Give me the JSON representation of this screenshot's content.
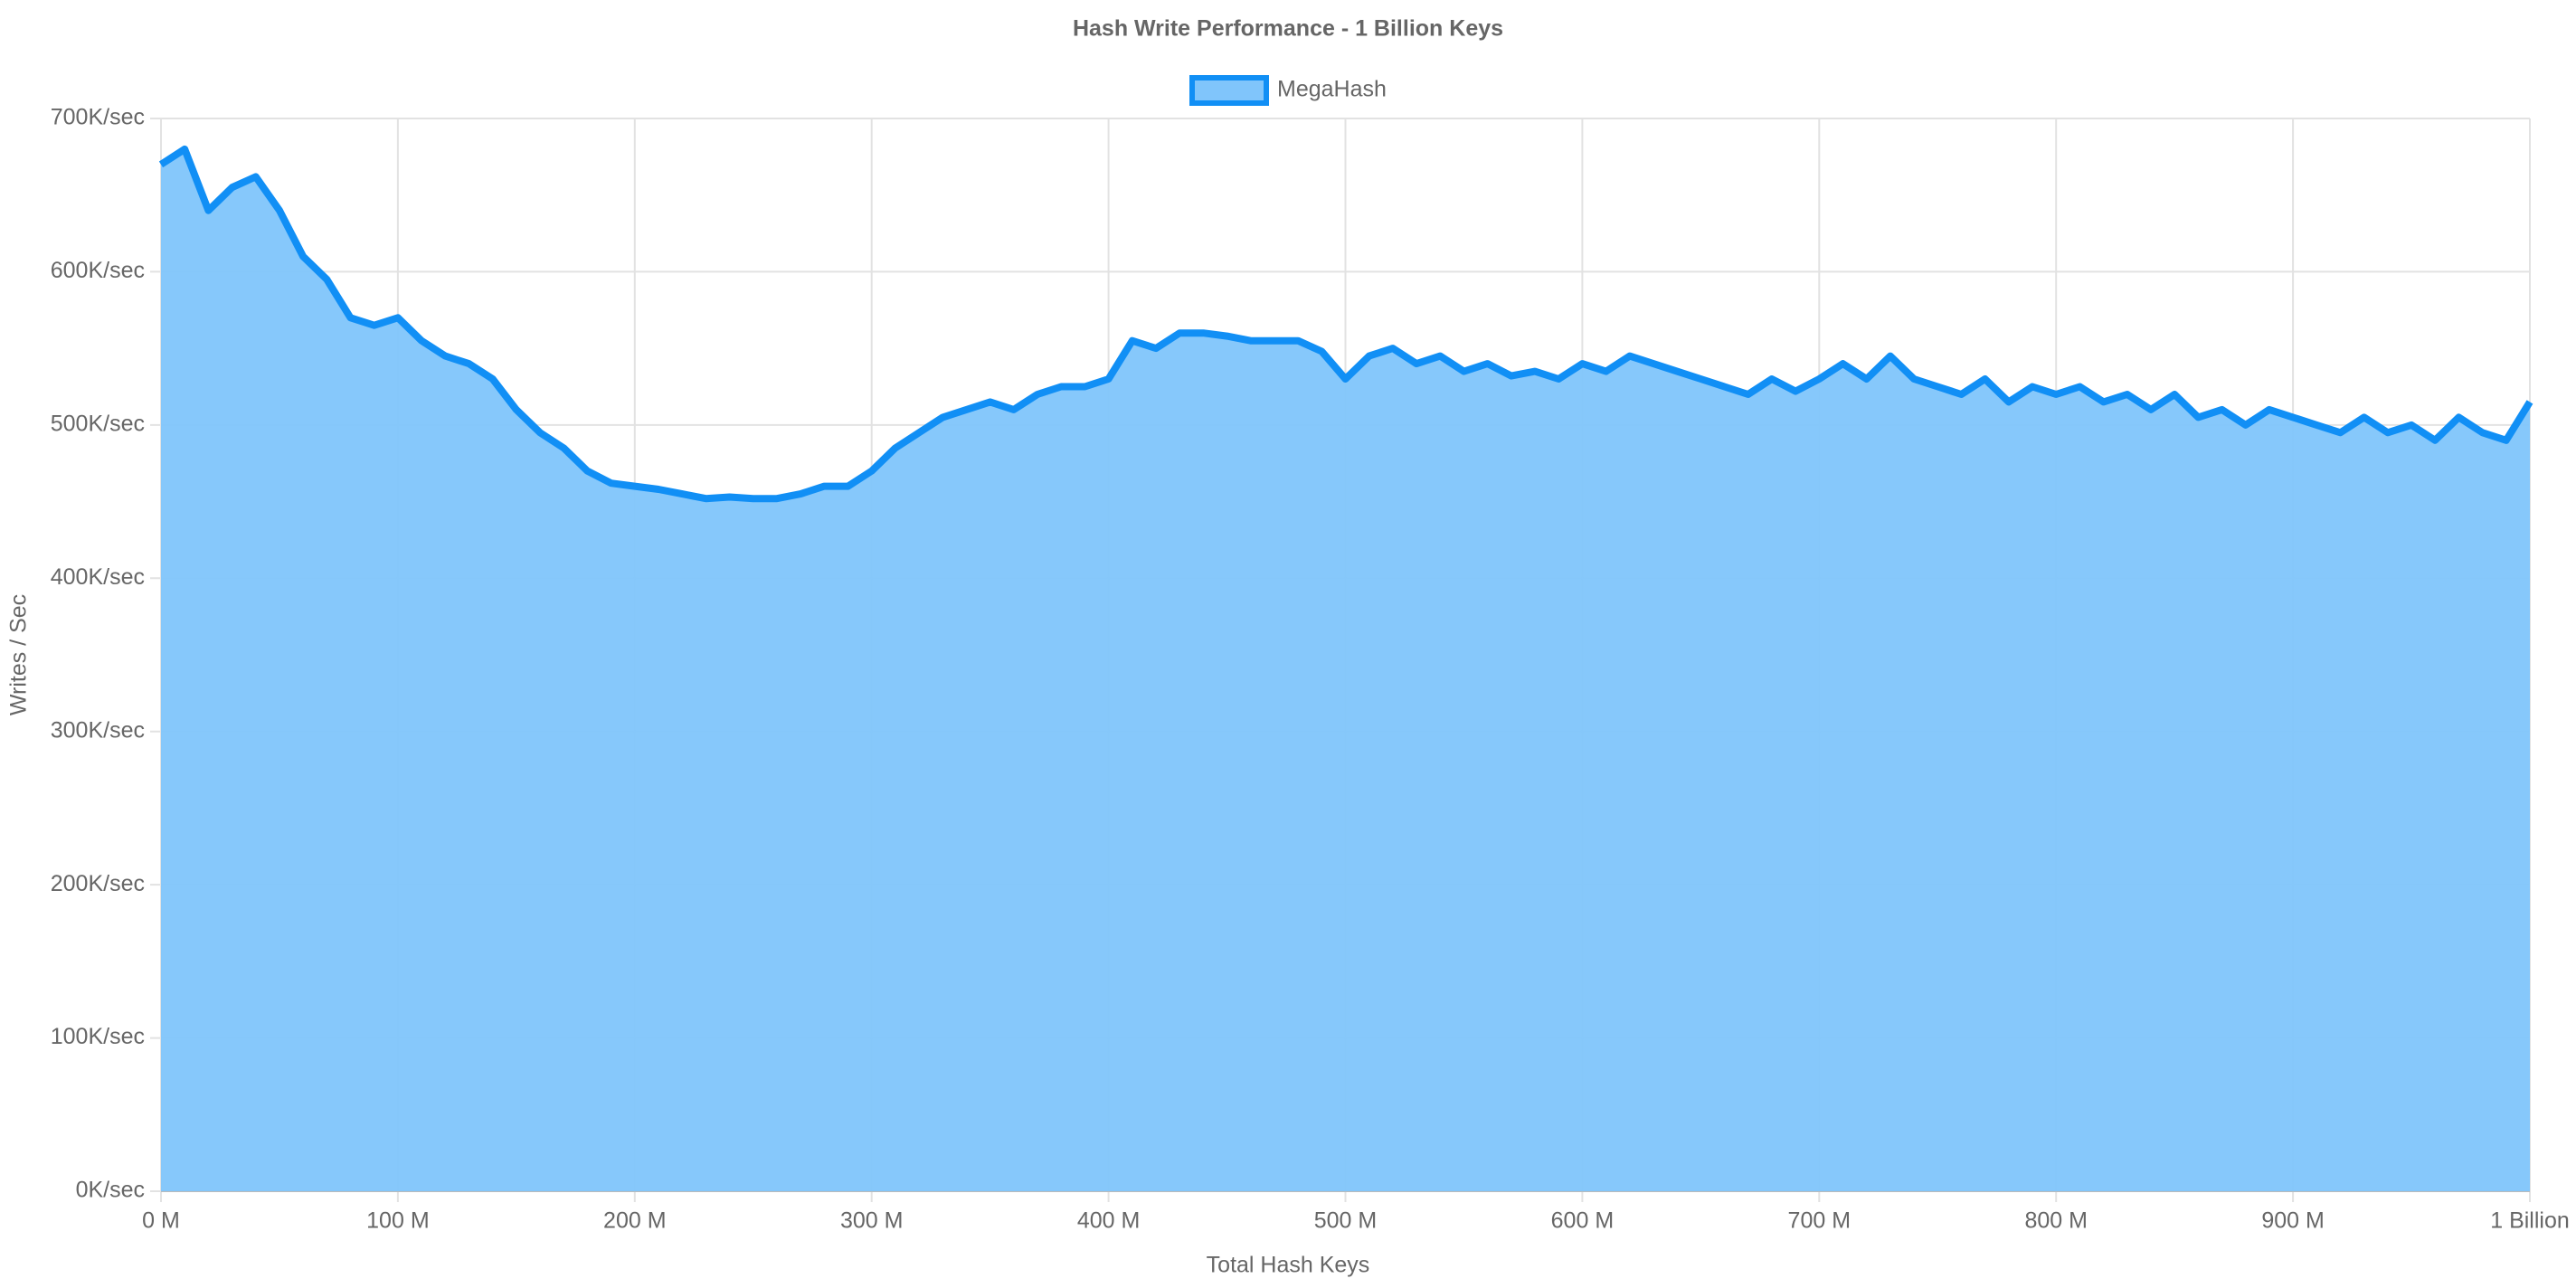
{
  "chart_data": {
    "type": "area",
    "title": "Hash Write Performance - 1 Billion Keys",
    "x_label": "Total Hash Keys",
    "y_label": "Writes / Sec",
    "x": [
      0,
      10,
      20,
      30,
      40,
      50,
      60,
      70,
      80,
      90,
      100,
      110,
      120,
      130,
      140,
      150,
      160,
      170,
      180,
      190,
      200,
      210,
      220,
      230,
      240,
      250,
      260,
      270,
      280,
      290,
      300,
      310,
      320,
      330,
      340,
      350,
      360,
      370,
      380,
      390,
      400,
      410,
      420,
      430,
      440,
      450,
      460,
      470,
      480,
      490,
      500,
      510,
      520,
      530,
      540,
      550,
      560,
      570,
      580,
      590,
      600,
      610,
      620,
      630,
      640,
      650,
      660,
      670,
      680,
      690,
      700,
      710,
      720,
      730,
      740,
      750,
      760,
      770,
      780,
      790,
      800,
      810,
      820,
      830,
      840,
      850,
      860,
      870,
      880,
      890,
      900,
      910,
      920,
      930,
      940,
      950,
      960,
      970,
      980,
      990,
      1000
    ],
    "series": [
      {
        "name": "MegaHash",
        "color": "#118ff5",
        "fill": "#80c5fb",
        "values": [
          670000,
          680000,
          640000,
          655000,
          662000,
          640000,
          610000,
          595000,
          570000,
          565000,
          570000,
          555000,
          545000,
          540000,
          530000,
          510000,
          495000,
          485000,
          470000,
          462000,
          460000,
          458000,
          455000,
          452000,
          453000,
          452000,
          452000,
          455000,
          460000,
          460000,
          470000,
          485000,
          495000,
          505000,
          510000,
          515000,
          510000,
          520000,
          525000,
          525000,
          530000,
          555000,
          550000,
          560000,
          560000,
          558000,
          555000,
          555000,
          555000,
          548000,
          530000,
          545000,
          550000,
          540000,
          545000,
          535000,
          540000,
          532000,
          535000,
          530000,
          540000,
          535000,
          545000,
          540000,
          535000,
          530000,
          525000,
          520000,
          530000,
          522000,
          530000,
          540000,
          530000,
          545000,
          530000,
          525000,
          520000,
          530000,
          515000,
          525000,
          520000,
          525000,
          515000,
          520000,
          510000,
          520000,
          505000,
          510000,
          500000,
          510000,
          505000,
          500000,
          495000,
          505000,
          495000,
          500000,
          490000,
          505000,
          495000,
          490000,
          515000
        ]
      }
    ],
    "xlim": [
      0,
      1000
    ],
    "xticks": [
      {
        "value": 0,
        "label": "0 M"
      },
      {
        "value": 100,
        "label": "100 M"
      },
      {
        "value": 200,
        "label": "200 M"
      },
      {
        "value": 300,
        "label": "300 M"
      },
      {
        "value": 400,
        "label": "400 M"
      },
      {
        "value": 500,
        "label": "500 M"
      },
      {
        "value": 600,
        "label": "600 M"
      },
      {
        "value": 700,
        "label": "700 M"
      },
      {
        "value": 800,
        "label": "800 M"
      },
      {
        "value": 900,
        "label": "900 M"
      },
      {
        "value": 1000,
        "label": "1 Billion"
      }
    ],
    "ylim": [
      0,
      700000
    ],
    "yticks": [
      {
        "value": 0,
        "label": "0K/sec"
      },
      {
        "value": 100000,
        "label": "100K/sec"
      },
      {
        "value": 200000,
        "label": "200K/sec"
      },
      {
        "value": 300000,
        "label": "300K/sec"
      },
      {
        "value": 400000,
        "label": "400K/sec"
      },
      {
        "value": 500000,
        "label": "500K/sec"
      },
      {
        "value": 600000,
        "label": "600K/sec"
      },
      {
        "value": 700000,
        "label": "700K/sec"
      }
    ],
    "grid": true,
    "legend": "top"
  }
}
